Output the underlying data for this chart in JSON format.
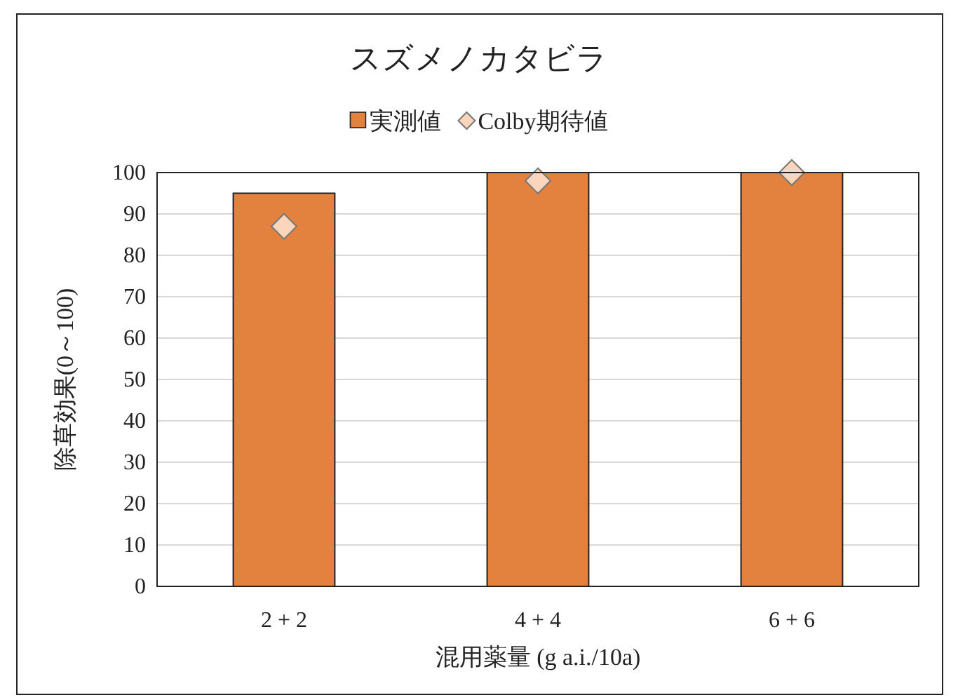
{
  "chart_data": {
    "type": "bar",
    "title": "スズメノカタビラ",
    "xlabel": "混用薬量 (g a.i./10a)",
    "ylabel": "除草効果(0～100)",
    "categories": [
      "2 + 2",
      "4 + 4",
      "6 + 6"
    ],
    "series": [
      {
        "name": "実測値",
        "color": "#e3823f",
        "values": [
          95,
          100,
          100
        ]
      },
      {
        "name": "Colby期待値",
        "type": "scatter",
        "color": "#fbd6bd",
        "values": [
          87,
          98,
          100
        ]
      }
    ],
    "ylim": [
      0,
      100
    ],
    "yticks": [
      0,
      10,
      20,
      30,
      40,
      50,
      60,
      70,
      80,
      90,
      100
    ],
    "grid": "y",
    "legend": "top",
    "marker": "diamond"
  }
}
